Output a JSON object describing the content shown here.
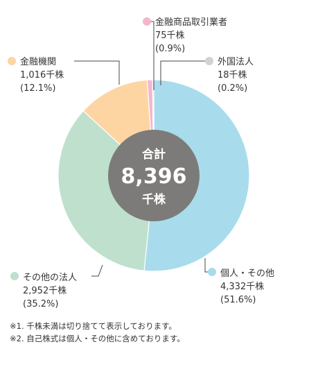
{
  "chart_data": {
    "type": "pie",
    "center_label": {
      "line1": "合計",
      "value": "8,396",
      "unit": "千株"
    },
    "slices": [
      {
        "name": "個人・その他",
        "value_label": "4,332千株",
        "percent_label": "(51.6%)",
        "value": 4332,
        "percent": 51.6,
        "color": "#a8dcec"
      },
      {
        "name": "その他の法人",
        "value_label": "2,952千株",
        "percent_label": "(35.2%)",
        "value": 2952,
        "percent": 35.2,
        "color": "#bfe0cc"
      },
      {
        "name": "金融機関",
        "value_label": "1,016千株",
        "percent_label": "(12.1%)",
        "value": 1016,
        "percent": 12.1,
        "color": "#fdd5a3"
      },
      {
        "name": "金融商品取引業者",
        "value_label": "75千株",
        "percent_label": "(0.9%)",
        "value": 75,
        "percent": 0.9,
        "color": "#f4b6cf"
      },
      {
        "name": "外国法人",
        "value_label": "18千株",
        "percent_label": "(0.2%)",
        "value": 18,
        "percent": 0.2,
        "color": "#d2d2d4"
      }
    ],
    "center_color": "#7d7b7a"
  },
  "footnotes": [
    "※1. 千株未満は切り捨てて表示しております。",
    "※2. 自己株式は個人・その他に含めております。"
  ]
}
